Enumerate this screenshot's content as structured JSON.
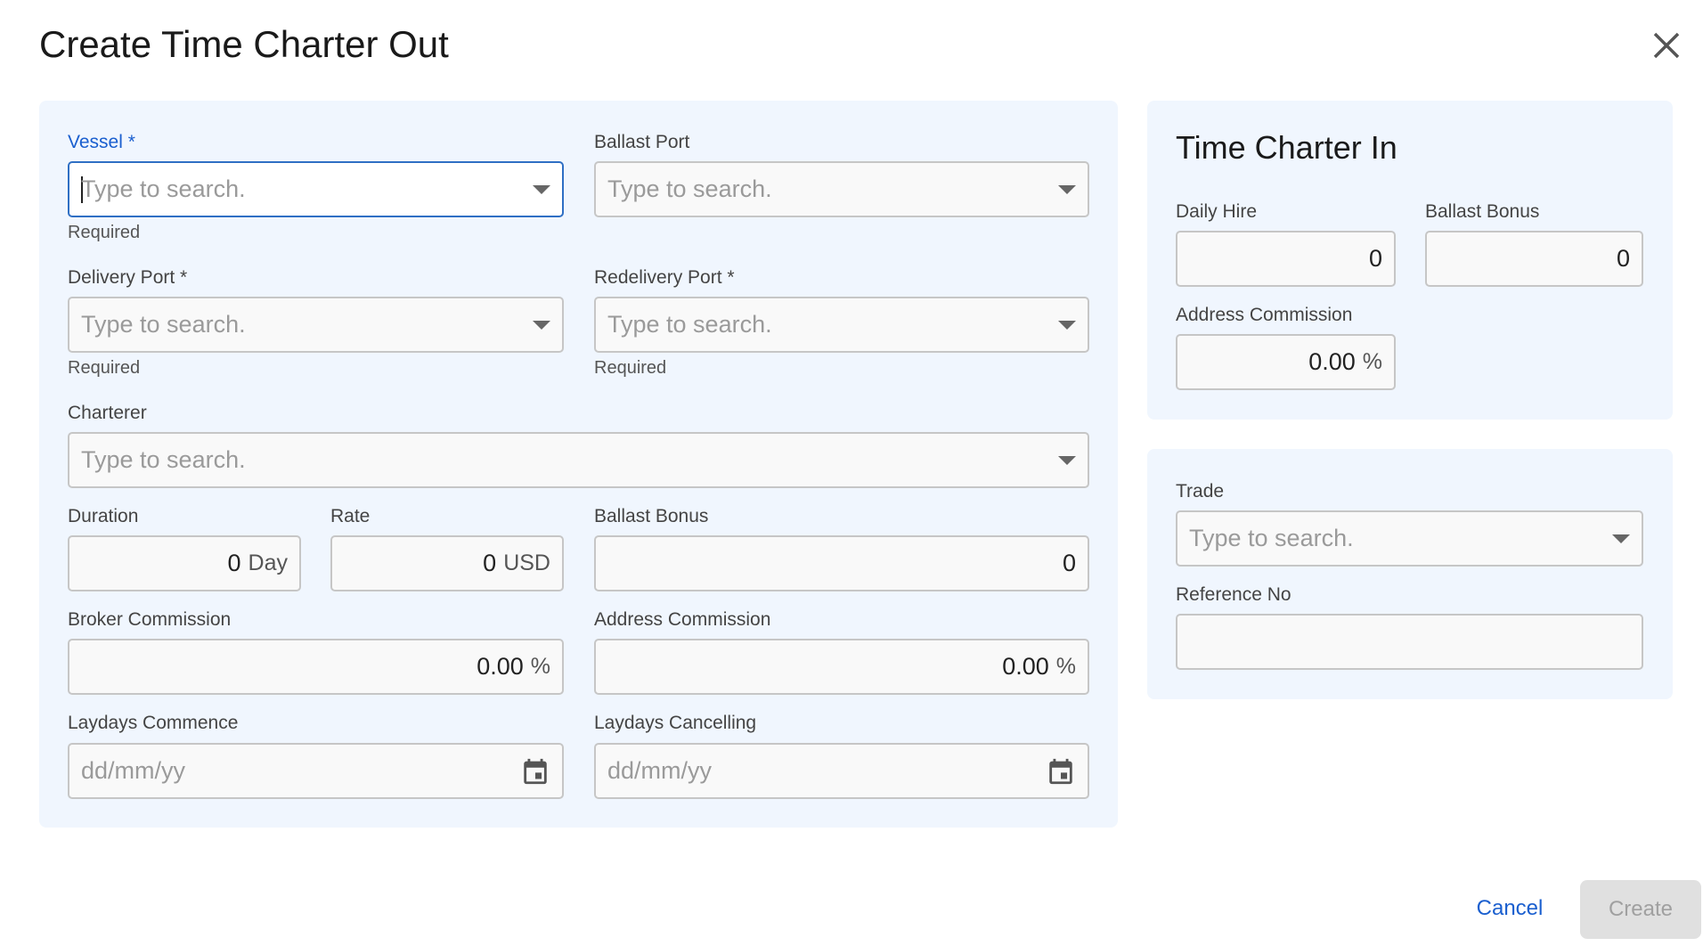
{
  "title": "Create Time Charter Out",
  "main": {
    "vessel": {
      "label": "Vessel *",
      "placeholder": "Type to search.",
      "help": "Required"
    },
    "ballast_port": {
      "label": "Ballast Port",
      "placeholder": "Type to search."
    },
    "delivery_port": {
      "label": "Delivery Port *",
      "placeholder": "Type to search.",
      "help": "Required"
    },
    "redelivery_port": {
      "label": "Redelivery Port *",
      "placeholder": "Type to search.",
      "help": "Required"
    },
    "charterer": {
      "label": "Charterer",
      "placeholder": "Type to search."
    },
    "duration": {
      "label": "Duration",
      "value": "0",
      "unit": "Day"
    },
    "rate": {
      "label": "Rate",
      "value": "0",
      "unit": "USD"
    },
    "ballast_bonus": {
      "label": "Ballast Bonus",
      "value": "0"
    },
    "broker_commission": {
      "label": "Broker Commission",
      "value": "0.00",
      "unit": "%"
    },
    "address_commission": {
      "label": "Address Commission",
      "value": "0.00",
      "unit": "%"
    },
    "laydays_commence": {
      "label": "Laydays Commence",
      "placeholder": "dd/mm/yy"
    },
    "laydays_cancelling": {
      "label": "Laydays Cancelling",
      "placeholder": "dd/mm/yy"
    }
  },
  "tci": {
    "title": "Time Charter In",
    "daily_hire": {
      "label": "Daily Hire",
      "value": "0"
    },
    "ballast_bonus": {
      "label": "Ballast Bonus",
      "value": "0"
    },
    "address_commission": {
      "label": "Address Commission",
      "value": "0.00",
      "unit": "%"
    }
  },
  "extra": {
    "trade": {
      "label": "Trade",
      "placeholder": "Type to search."
    },
    "reference_no": {
      "label": "Reference No",
      "value": ""
    }
  },
  "footer": {
    "cancel": "Cancel",
    "create": "Create"
  },
  "colors": {
    "accent": "#1a5fcf",
    "panel": "#f0f6fe"
  }
}
